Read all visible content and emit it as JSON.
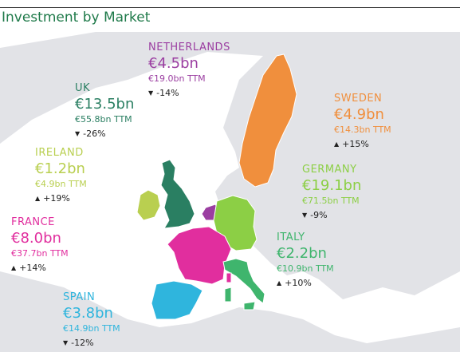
{
  "title": "Investment by Market",
  "colors": {
    "title": "#1f7a4a",
    "sea": "#ffffff",
    "land": "#e2e3e7",
    "border": "#ffffff"
  },
  "markets": [
    {
      "key": "netherlands",
      "name": "NETHERLANDS",
      "value": "€4.5bn",
      "ttm": "€19.0bn TTM",
      "direction": "down",
      "change": "-14%",
      "color": "#9b3ea1"
    },
    {
      "key": "uk",
      "name": "UK",
      "value": "€13.5bn",
      "ttm": "€55.8bn TTM",
      "direction": "down",
      "change": "-26%",
      "color": "#2a7f62"
    },
    {
      "key": "ireland",
      "name": "IRELAND",
      "value": "€1.2bn",
      "ttm": "€4.9bn TTM",
      "direction": "up",
      "change": "+19%",
      "color": "#b9cf50"
    },
    {
      "key": "france",
      "name": "FRANCE",
      "value": "€8.0bn",
      "ttm": "€37.7bn TTM",
      "direction": "up",
      "change": "+14%",
      "color": "#e12e9e"
    },
    {
      "key": "spain",
      "name": "SPAIN",
      "value": "€3.8bn",
      "ttm": "€14.9bn TTM",
      "direction": "down",
      "change": "-12%",
      "color": "#2fb5dd"
    },
    {
      "key": "sweden",
      "name": "SWEDEN",
      "value": "€4.9bn",
      "ttm": "€14.3bn TTM",
      "direction": "up",
      "change": "+15%",
      "color": "#f08f3d"
    },
    {
      "key": "germany",
      "name": "GERMANY",
      "value": "€19.1bn",
      "ttm": "€71.5bn TTM",
      "direction": "down",
      "change": "-9%",
      "color": "#8ccf45"
    },
    {
      "key": "italy",
      "name": "ITALY",
      "value": "€2.2bn",
      "ttm": "€10.9bn TTM",
      "direction": "up",
      "change": "+10%",
      "color": "#3fb56d"
    }
  ]
}
